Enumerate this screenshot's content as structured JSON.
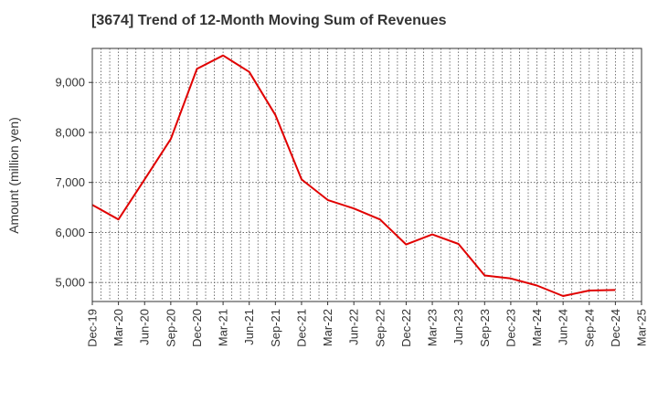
{
  "chart_data": {
    "type": "line",
    "title": "[3674]  Trend of 12-Month Moving Sum of Revenues",
    "xlabel": "",
    "ylabel": "Amount (million yen)",
    "x_ticks": [
      "Dec-19",
      "Mar-20",
      "Jun-20",
      "Sep-20",
      "Dec-20",
      "Mar-21",
      "Jun-21",
      "Sep-21",
      "Dec-21",
      "Mar-22",
      "Jun-22",
      "Sep-22",
      "Dec-22",
      "Mar-23",
      "Jun-23",
      "Sep-23",
      "Dec-23",
      "Mar-24",
      "Jun-24",
      "Sep-24",
      "Dec-24",
      "Mar-25"
    ],
    "y_ticks": [
      5000,
      6000,
      7000,
      8000,
      9000
    ],
    "y_tick_labels": [
      "5,000",
      "6,000",
      "7,000",
      "8,000",
      "9,000"
    ],
    "ylim": [
      4620,
      9680
    ],
    "grid": true,
    "series": [
      {
        "color": "#e00000",
        "x": [
          "Dec-19",
          "Mar-20",
          "Jun-20",
          "Sep-20",
          "Dec-20",
          "Mar-21",
          "Jun-21",
          "Sep-21",
          "Dec-21",
          "Mar-22",
          "Jun-22",
          "Sep-22",
          "Dec-22",
          "Mar-23",
          "Jun-23",
          "Sep-23",
          "Dec-23",
          "Mar-24",
          "Jun-24",
          "Sep-24",
          "Dec-24"
        ],
        "values": [
          6550,
          6260,
          7060,
          7870,
          9270,
          9540,
          9210,
          8350,
          7060,
          6650,
          6480,
          6260,
          5760,
          5960,
          5770,
          5140,
          5080,
          4940,
          4730,
          4840,
          4850
        ]
      }
    ]
  }
}
